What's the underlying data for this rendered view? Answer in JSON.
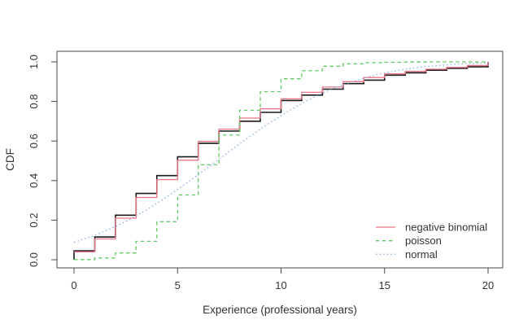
{
  "figure": {
    "title": "",
    "xlabel": "Experience (professional years)",
    "ylabel": "CDF"
  },
  "legend": {
    "items": [
      {
        "label": "negative binomial",
        "color": "#ec7688",
        "style": "solid"
      },
      {
        "label": "poisson",
        "color": "#61c961",
        "style": "dashed"
      },
      {
        "label": "normal",
        "color": "#8ab4e2",
        "style": "dotted"
      }
    ]
  },
  "chart_data": {
    "type": "line",
    "subtype": "ecdf-with-fitted-cdfs",
    "title": "",
    "xlabel": "Experience (professional years)",
    "ylabel": "CDF",
    "xlim": [
      -0.8,
      20.8
    ],
    "ylim": [
      -0.042,
      1.042
    ],
    "grid": false,
    "legend_position": "bottom-right",
    "x_ticks": [
      0,
      5,
      10,
      15,
      20
    ],
    "x_tick_labels": [
      "0",
      "5",
      "10",
      "15",
      "20"
    ],
    "y_ticks": [
      0.0,
      0.2,
      0.4,
      0.6,
      0.8,
      1.0
    ],
    "y_tick_labels": [
      "0.0",
      "0.2",
      "0.4",
      "0.6",
      "0.8",
      "1.0"
    ],
    "frame_color": "#4a4a4a",
    "empirical_color": "#1a1a1a",
    "series": [
      {
        "name": "empirical",
        "draw": "step",
        "color": "#1a1a1a",
        "dash": "solid",
        "initial_vertical": true,
        "x": [
          0,
          1,
          2,
          3,
          4,
          5,
          6,
          7,
          8,
          9,
          10,
          11,
          12,
          13,
          14,
          15,
          16,
          17,
          18,
          19,
          20
        ],
        "values": [
          0.045,
          0.115,
          0.225,
          0.335,
          0.425,
          0.52,
          0.588,
          0.65,
          0.7,
          0.745,
          0.805,
          0.832,
          0.862,
          0.89,
          0.908,
          0.933,
          0.945,
          0.958,
          0.967,
          0.975,
          1.0
        ]
      },
      {
        "name": "negative binomial",
        "draw": "step",
        "color": "#ec7688",
        "dash": "solid",
        "initial_vertical": false,
        "x": [
          0,
          1,
          2,
          3,
          4,
          5,
          6,
          7,
          8,
          9,
          10,
          11,
          12,
          13,
          14,
          15,
          16,
          17,
          18,
          19,
          20
        ],
        "values": [
          0.04,
          0.105,
          0.21,
          0.315,
          0.405,
          0.503,
          0.598,
          0.66,
          0.716,
          0.763,
          0.813,
          0.846,
          0.873,
          0.9,
          0.921,
          0.94,
          0.952,
          0.963,
          0.972,
          0.982,
          1.0
        ]
      },
      {
        "name": "poisson",
        "draw": "step",
        "color": "#61c961",
        "dash": "dashed",
        "initial_vertical": false,
        "x": [
          0,
          1,
          2,
          3,
          4,
          5,
          6,
          7,
          8,
          9,
          10,
          11,
          12,
          13,
          14,
          15,
          16,
          17,
          18,
          19,
          20
        ],
        "values": [
          0.001,
          0.009,
          0.034,
          0.093,
          0.192,
          0.327,
          0.48,
          0.63,
          0.755,
          0.85,
          0.915,
          0.955,
          0.978,
          0.99,
          0.996,
          0.998,
          0.999,
          1.0,
          1.0,
          1.0,
          1.0
        ]
      },
      {
        "name": "normal",
        "draw": "curve",
        "color": "#8ab4e2",
        "dash": "dotted",
        "x": [
          0,
          0.5,
          1,
          1.5,
          2,
          2.5,
          3,
          3.5,
          4,
          4.5,
          5,
          5.5,
          6,
          6.5,
          7,
          7.5,
          8,
          8.5,
          9,
          9.5,
          10,
          10.5,
          11,
          11.5,
          12,
          12.5,
          13,
          13.5,
          14,
          14.5,
          15,
          15.5,
          16,
          16.5,
          17,
          17.5,
          18,
          18.5,
          19,
          19.5,
          20
        ],
        "values": [
          0.088,
          0.105,
          0.124,
          0.145,
          0.168,
          0.194,
          0.222,
          0.252,
          0.285,
          0.319,
          0.355,
          0.392,
          0.43,
          0.469,
          0.508,
          0.547,
          0.585,
          0.623,
          0.66,
          0.695,
          0.728,
          0.76,
          0.789,
          0.817,
          0.841,
          0.864,
          0.884,
          0.902,
          0.918,
          0.932,
          0.944,
          0.954,
          0.963,
          0.97,
          0.976,
          0.981,
          0.985,
          0.989,
          0.991,
          0.993,
          0.995
        ]
      }
    ]
  }
}
